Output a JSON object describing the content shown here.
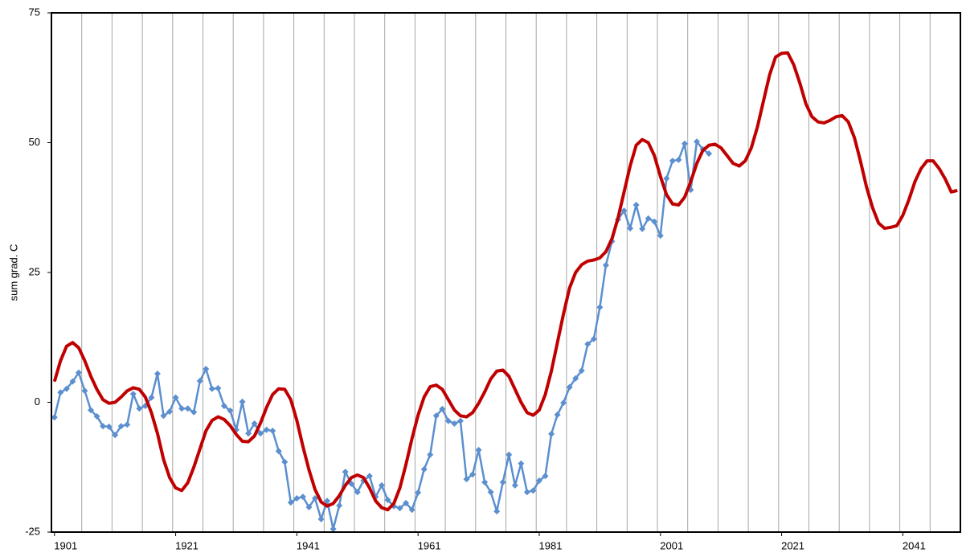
{
  "chart_data": {
    "type": "line",
    "y_label": "sum grad. C",
    "xlim": [
      1900.5,
      2050.5
    ],
    "xticks": [
      1901,
      1921,
      1941,
      1961,
      1981,
      2001,
      2021,
      2041
    ],
    "x_gridlines": [
      1905.5,
      1910.5,
      1915.5,
      1920.5,
      1925.5,
      1930.5,
      1935.5,
      1940.5,
      1945.5,
      1950.5,
      1955.5,
      1960.5,
      1965.5,
      1970.5,
      1975.5,
      1980.5,
      1985.5,
      1990.5,
      1995.5,
      2000.5,
      2005.5,
      2010.5,
      2015.5,
      2020.5,
      2025.5,
      2030.5,
      2035.5,
      2040.5,
      2045.5
    ],
    "ylim": [
      -25,
      75
    ],
    "yticks": [
      -25,
      0,
      25,
      50,
      75
    ],
    "series": [
      {
        "color": "#5b8fcf",
        "marker": "diamond",
        "x_start": 1901,
        "values": [
          -2.9,
          1.9,
          2.6,
          4,
          5.7,
          2.2,
          -1.5,
          -2.7,
          -4.6,
          -4.7,
          -6.3,
          -4.6,
          -4.3,
          1.6,
          -1.2,
          -0.7,
          0.9,
          5.5,
          -2.6,
          -1.8,
          0.9,
          -1.2,
          -1.2,
          -1.9,
          4.1,
          6.4,
          2.6,
          2.7,
          -0.7,
          -1.6,
          -5.3,
          0.1,
          -6,
          -4.1,
          -6,
          -5.3,
          -5.5,
          -9.4,
          -11.5,
          -19.3,
          -18.5,
          -18.2,
          -20.2,
          -18.5,
          -22.5,
          -19,
          -24.4,
          -19.9,
          -13.4,
          -15.7,
          -17.3,
          -15.1,
          -14.2,
          -18.2,
          -16,
          -18.8,
          -20,
          -20.4,
          -19.4,
          -20.7,
          -17.4,
          -12.9,
          -10.1,
          -2.6,
          -1.3,
          -3.6,
          -4.1,
          -3.6,
          -14.8,
          -13.9,
          -9.2,
          -15.4,
          -17.3,
          -21,
          -15.4,
          -10.1,
          -16,
          -11.8,
          -17.3,
          -17,
          -15.1,
          -14.2,
          -6.1,
          -2.4,
          -0.1,
          2.9,
          4.6,
          6.1,
          11.2,
          12.2,
          18.3,
          26.4,
          31,
          35.2,
          36.9,
          33.5,
          38,
          33.4,
          35.4,
          34.8,
          32.1,
          43.1,
          46.5,
          46.7,
          49.8,
          40.9,
          50.2,
          48.7,
          47.9
        ]
      },
      {
        "color": "#c00000",
        "marker": "none",
        "x_start": 1901,
        "values": [
          4,
          8,
          10.8,
          11.5,
          10.5,
          8,
          5,
          2.5,
          0.5,
          -0.2,
          0,
          1,
          2.2,
          2.8,
          2.5,
          1,
          -2,
          -6,
          -11,
          -14.5,
          -16.5,
          -17,
          -15.5,
          -12.5,
          -9,
          -5.5,
          -3.5,
          -2.8,
          -3.3,
          -4.5,
          -6.2,
          -7.5,
          -7.6,
          -6.5,
          -4,
          -1,
          1.5,
          2.6,
          2.5,
          0.5,
          -3.5,
          -8.5,
          -13,
          -16.8,
          -19.2,
          -20,
          -19.5,
          -18,
          -16,
          -14.5,
          -14,
          -14.5,
          -16.5,
          -19,
          -20.3,
          -20.7,
          -19.5,
          -16.5,
          -12,
          -7,
          -2.5,
          1,
          3,
          3.3,
          2.5,
          0.5,
          -1.5,
          -2.6,
          -2.8,
          -2,
          -0.2,
          2,
          4.5,
          6,
          6.2,
          5,
          2.5,
          0,
          -2,
          -2.5,
          -1.5,
          1.5,
          6,
          11.5,
          17,
          22,
          25,
          26.5,
          27.2,
          27.4,
          27.8,
          29,
          31.5,
          35.5,
          40.5,
          45.5,
          49.5,
          50.6,
          50,
          47.5,
          43.5,
          40,
          38.2,
          38,
          39.5,
          42.5,
          46,
          48.5,
          49.5,
          49.7,
          49,
          47.5,
          46,
          45.5,
          46.5,
          49,
          53,
          58,
          63,
          66.5,
          67.2,
          67.3,
          65,
          61.5,
          57.5,
          55,
          54,
          53.8,
          54.3,
          55,
          55.2,
          54,
          51,
          46.5,
          41.5,
          37.5,
          34.5,
          33.5,
          33.7,
          34,
          36,
          39,
          42.5,
          45,
          46.5,
          46.5,
          45,
          43,
          40.5,
          40.8
        ]
      }
    ]
  }
}
